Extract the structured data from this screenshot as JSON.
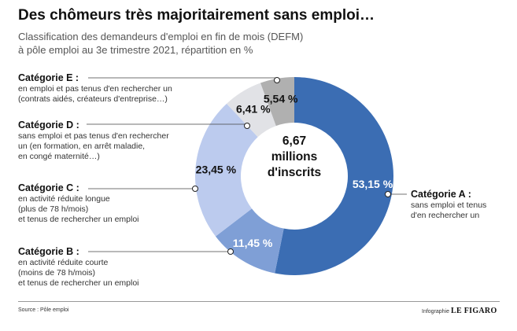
{
  "header": {
    "title": "Des chômeurs très majoritairement sans emploi…",
    "subtitle_line1": "Classification des demandeurs d'emploi en fin de mois (DEFM)",
    "subtitle_line2": "à pôle emploi au 3e trimestre 2021, répartition en %"
  },
  "center_label": {
    "line1": "6,67",
    "line2": "millions",
    "line3": "d'inscrits"
  },
  "categories": {
    "a": {
      "name": "Catégorie A :",
      "desc": [
        "sans emploi et tenus",
        "d'en rechercher un"
      ]
    },
    "b": {
      "name": "Catégorie B :",
      "desc": [
        "en activité réduite courte",
        "(moins de 78 h/mois)",
        "et tenus de rechercher un emploi"
      ]
    },
    "c": {
      "name": "Catégorie C :",
      "desc": [
        "en activité réduite longue",
        "(plus de 78 h/mois)",
        "et tenus de rechercher un emploi"
      ]
    },
    "d": {
      "name": "Catégorie D :",
      "desc": [
        "sans emploi et pas tenus d'en rechercher",
        "un (en formation, en arrêt maladie,",
        "en congé maternité…)"
      ]
    },
    "e": {
      "name": "Catégorie E :",
      "desc": [
        "en emploi et pas tenus d'en rechercher un",
        "(contrats aidés, créateurs d'entreprise…)"
      ]
    }
  },
  "footer": {
    "source": "Source : Pôle emploi",
    "credit_prefix": "Infographie",
    "credit_brand": "LE FIGARO"
  },
  "chart_data": {
    "type": "pie",
    "categories": [
      "Catégorie A",
      "Catégorie B",
      "Catégorie C",
      "Catégorie D",
      "Catégorie E"
    ],
    "values": [
      53.15,
      11.45,
      23.45,
      6.41,
      5.54
    ],
    "value_labels": [
      "53,15 %",
      "11,45 %",
      "23,45 %",
      "6,41 %",
      "5,54 %"
    ],
    "colors": [
      "#3b6db3",
      "#7f9fd6",
      "#bccbee",
      "#e1e2e6",
      "#b0b0b0"
    ],
    "label_colors": [
      "#ffffff",
      "#ffffff",
      "#111111",
      "#111111",
      "#111111"
    ],
    "donut": true,
    "start": "top",
    "direction": "clockwise"
  }
}
